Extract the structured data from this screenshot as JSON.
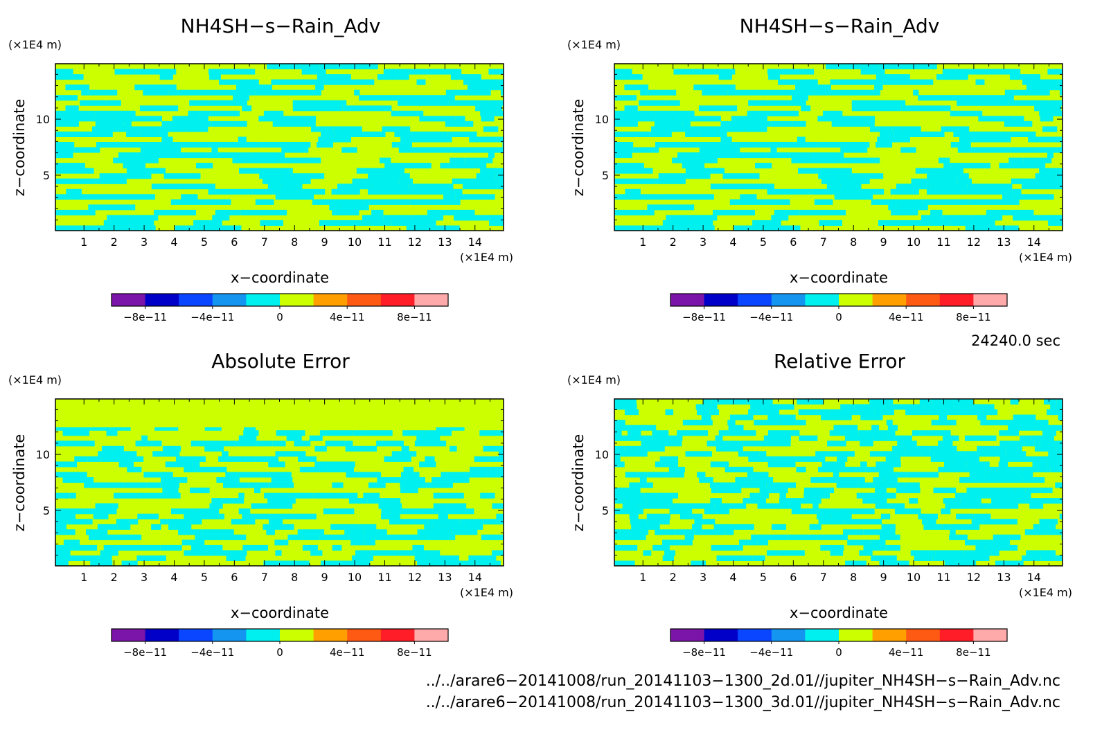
{
  "panels": [
    {
      "title": "NH4SH−s−Rain_Adv",
      "xlabel": "x−coordinate",
      "ylabel": "z−coordinate",
      "x_unit": "(×1E4 m)",
      "y_unit": "(×1E4 m)",
      "pattern_seed": 11
    },
    {
      "title": "NH4SH−s−Rain_Adv",
      "xlabel": "x−coordinate",
      "ylabel": "z−coordinate",
      "x_unit": "(×1E4 m)",
      "y_unit": "(×1E4 m)",
      "pattern_seed": 11
    },
    {
      "title": "Absolute Error",
      "xlabel": "x−coordinate",
      "ylabel": "z−coordinate",
      "x_unit": "(×1E4 m)",
      "y_unit": "(×1E4 m)",
      "pattern_seed": 29
    },
    {
      "title": "Relative Error",
      "xlabel": "x−coordinate",
      "ylabel": "z−coordinate",
      "x_unit": "(×1E4 m)",
      "y_unit": "(×1E4 m)",
      "pattern_seed": 47
    }
  ],
  "chart_data": {
    "type": "heatmap",
    "x_ticks": [
      "1",
      "2",
      "3",
      "4",
      "5",
      "6",
      "7",
      "8",
      "9",
      "10",
      "11",
      "12",
      "13",
      "14"
    ],
    "x_range": [
      0.05,
      14.95
    ],
    "y_ticks": [
      "5",
      "10"
    ],
    "y_tick_values": [
      5,
      10
    ],
    "y_range": [
      0.05,
      14.95
    ],
    "colorbar": {
      "colors": [
        "#7B14A8",
        "#0000C8",
        "#0A46FF",
        "#1496F0",
        "#00F0F0",
        "#CCFF00",
        "#FFA000",
        "#FF5A14",
        "#FF1E28",
        "#FFAAAA"
      ],
      "tick_labels": [
        "−8e−11",
        "−4e−11",
        "0",
        "4e−11",
        "8e−11"
      ]
    },
    "field_colors": [
      "#00F0F0",
      "#CCFF00"
    ]
  },
  "time_label": "24240.0 sec",
  "files": [
    "../../arare6−20141008/run_20141103−1300_2d.01//jupiter_NH4SH−s−Rain_Adv.nc",
    "../../arare6−20141008/run_20141103−1300_3d.01//jupiter_NH4SH−s−Rain_Adv.nc"
  ]
}
